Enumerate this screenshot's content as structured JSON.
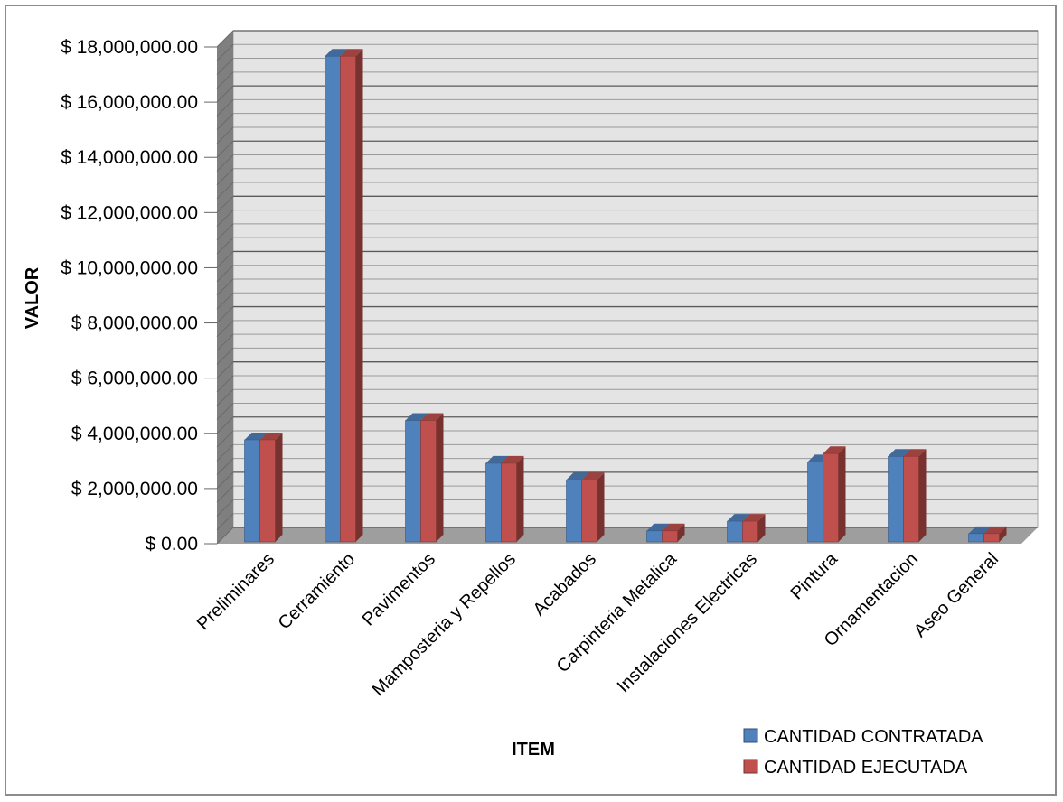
{
  "chart_data": {
    "type": "bar",
    "style": "3d-clustered-column",
    "categories": [
      "Preliminares",
      "Cerramiento",
      "Pavimentos",
      "Mamposteria y Repellos",
      "Acabados",
      "Carpinteria Metalica",
      "Instalaciones Electricas",
      "Pintura",
      "Ornamentacion",
      "Aseo General"
    ],
    "series": [
      {
        "name": "CANTIDAD CONTRATADA",
        "color": "#4f81bd",
        "values": [
          3700000,
          17600000,
          4400000,
          2850000,
          2250000,
          400000,
          750000,
          2900000,
          3100000,
          300000
        ]
      },
      {
        "name": "CANTIDAD EJECUTADA",
        "color": "#c0504d",
        "values": [
          3700000,
          17600000,
          4400000,
          2850000,
          2250000,
          400000,
          750000,
          3200000,
          3100000,
          300000
        ]
      }
    ],
    "y_ticks": [
      "$ 0.00",
      "$ 2,000,000.00",
      "$ 4,000,000.00",
      "$ 6,000,000.00",
      "$ 8,000,000.00",
      "$ 10,000,000.00",
      "$ 12,000,000.00",
      "$ 14,000,000.00",
      "$ 16,000,000.00",
      "$ 18,000,000.00"
    ],
    "ylim": [
      0,
      18000000
    ],
    "xlabel": "ITEM",
    "ylabel": "VALOR",
    "grid": true,
    "legend_position": "bottom-right"
  }
}
